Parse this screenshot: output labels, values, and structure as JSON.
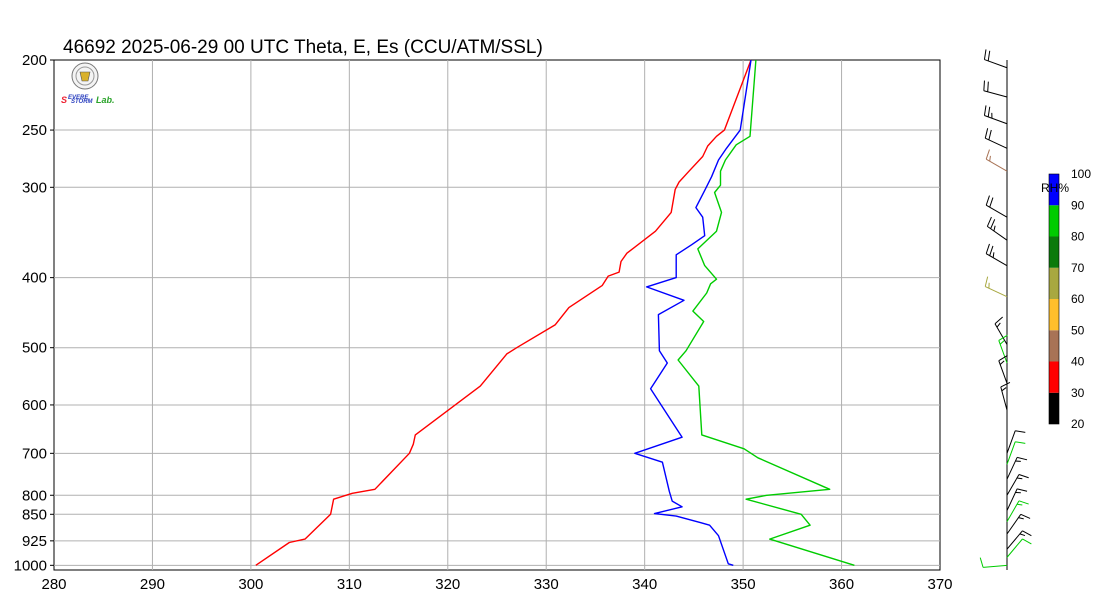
{
  "chart_data": {
    "type": "line",
    "title": "46692  2025-06-29 00 UTC  Theta, E, Es (CCU/ATM/SSL)",
    "x_ticks": [
      "280",
      "290",
      "300",
      "310",
      "320",
      "330",
      "340",
      "350",
      "360",
      "370"
    ],
    "y_ticks": [
      {
        "p": 200,
        "label": "200"
      },
      {
        "p": 250,
        "label": "250"
      },
      {
        "p": 300,
        "label": "300"
      },
      {
        "p": 400,
        "label": "400"
      },
      {
        "p": 500,
        "label": "500"
      },
      {
        "p": 600,
        "label": "600"
      },
      {
        "p": 700,
        "label": "700"
      },
      {
        "p": 800,
        "label": "800"
      },
      {
        "p": 850,
        "label": "850"
      },
      {
        "p": 925,
        "label": "925"
      },
      {
        "p": 1000,
        "label": "1000"
      }
    ],
    "xlim": [
      280,
      370
    ],
    "ylim": [
      1000,
      200
    ],
    "grid": true,
    "series": [
      {
        "color": "#ff0000",
        "points": [
          [
            300.5,
            1000
          ],
          [
            303.9,
            930
          ],
          [
            305.5,
            920
          ],
          [
            308.1,
            850
          ],
          [
            308.4,
            810
          ],
          [
            310.3,
            795
          ],
          [
            312.6,
            785
          ],
          [
            316.1,
            700
          ],
          [
            316.5,
            680
          ],
          [
            316.7,
            660
          ],
          [
            323.3,
            565
          ],
          [
            326.0,
            510
          ],
          [
            327.0,
            500
          ],
          [
            330.9,
            465
          ],
          [
            332.3,
            440
          ],
          [
            335.7,
            410
          ],
          [
            336.3,
            398
          ],
          [
            337.4,
            393
          ],
          [
            337.6,
            380
          ],
          [
            338.2,
            370
          ],
          [
            341.1,
            345
          ],
          [
            342.7,
            325
          ],
          [
            343.1,
            302
          ],
          [
            343.5,
            295
          ],
          [
            344.5,
            285
          ],
          [
            345.9,
            272
          ],
          [
            346.4,
            263
          ],
          [
            347.3,
            255
          ],
          [
            348.1,
            250
          ],
          [
            350.8,
            200
          ]
        ]
      },
      {
        "color": "#0000ff",
        "points": [
          [
            349.0,
            1000
          ],
          [
            348.5,
            995
          ],
          [
            347.5,
            910
          ],
          [
            346.6,
            880
          ],
          [
            345.7,
            873
          ],
          [
            343.2,
            855
          ],
          [
            341.0,
            848
          ],
          [
            343.8,
            830
          ],
          [
            342.8,
            815
          ],
          [
            342.5,
            790
          ],
          [
            341.8,
            720
          ],
          [
            339.0,
            700
          ],
          [
            343.8,
            665
          ],
          [
            340.6,
            570
          ],
          [
            342.3,
            525
          ],
          [
            341.5,
            505
          ],
          [
            341.4,
            450
          ],
          [
            344.0,
            430
          ],
          [
            340.2,
            412
          ],
          [
            343.2,
            400
          ],
          [
            343.2,
            372
          ],
          [
            344.8,
            360
          ],
          [
            346.1,
            350
          ],
          [
            345.9,
            330
          ],
          [
            345.2,
            320
          ],
          [
            346.1,
            303
          ],
          [
            346.8,
            290
          ],
          [
            347.5,
            275
          ],
          [
            348.3,
            265
          ],
          [
            349.7,
            250
          ],
          [
            350.8,
            200
          ]
        ]
      },
      {
        "color": "#00cc00",
        "points": [
          [
            361.3,
            1000
          ],
          [
            352.7,
            920
          ],
          [
            356.8,
            880
          ],
          [
            355.9,
            850
          ],
          [
            350.3,
            810
          ],
          [
            352.4,
            800
          ],
          [
            358.8,
            785
          ],
          [
            351.5,
            710
          ],
          [
            350.1,
            690
          ],
          [
            345.8,
            660
          ],
          [
            345.5,
            565
          ],
          [
            343.4,
            520
          ],
          [
            344.2,
            505
          ],
          [
            346.0,
            460
          ],
          [
            344.9,
            445
          ],
          [
            346.3,
            420
          ],
          [
            346.7,
            408
          ],
          [
            347.3,
            402
          ],
          [
            346.1,
            385
          ],
          [
            345.4,
            365
          ],
          [
            347.3,
            345
          ],
          [
            347.8,
            325
          ],
          [
            347.1,
            305
          ],
          [
            347.7,
            298
          ],
          [
            347.7,
            285
          ],
          [
            348.2,
            275
          ],
          [
            349.3,
            262
          ],
          [
            350.7,
            255
          ],
          [
            351.3,
            200
          ]
        ]
      }
    ],
    "colorbar": {
      "title": "RH%",
      "ticks": [
        "20",
        "30",
        "40",
        "50",
        "60",
        "70",
        "80",
        "90",
        "100"
      ],
      "colors": [
        "#000000",
        "#ff0000",
        "#a87356",
        "#ffbf2b",
        "#a8a840",
        "#0b7a0b",
        "#00cc00",
        "#0000ff"
      ]
    }
  },
  "wind_barbs": [
    {
      "p": 205,
      "dir": 290,
      "spd": 20,
      "color": "#000000"
    },
    {
      "p": 225,
      "dir": 285,
      "spd": 20,
      "color": "#000000"
    },
    {
      "p": 245,
      "dir": 290,
      "spd": 25,
      "color": "#000000"
    },
    {
      "p": 265,
      "dir": 295,
      "spd": 20,
      "color": "#000000"
    },
    {
      "p": 285,
      "dir": 300,
      "spd": 15,
      "color": "#a87356"
    },
    {
      "p": 330,
      "dir": 300,
      "spd": 20,
      "color": "#000000"
    },
    {
      "p": 355,
      "dir": 305,
      "spd": 25,
      "color": "#000000"
    },
    {
      "p": 385,
      "dir": 300,
      "spd": 25,
      "color": "#000000"
    },
    {
      "p": 425,
      "dir": 295,
      "spd": 15,
      "color": "#a8a840"
    },
    {
      "p": 495,
      "dir": 330,
      "spd": 15,
      "color": "#000000"
    },
    {
      "p": 525,
      "dir": 340,
      "spd": 15,
      "color": "#00cc00"
    },
    {
      "p": 560,
      "dir": 340,
      "spd": 15,
      "color": "#000000"
    },
    {
      "p": 610,
      "dir": 345,
      "spd": 15,
      "color": "#000000"
    },
    {
      "p": 700,
      "dir": 20,
      "spd": 10,
      "color": "#000000"
    },
    {
      "p": 725,
      "dir": 20,
      "spd": 10,
      "color": "#00cc00"
    },
    {
      "p": 760,
      "dir": 25,
      "spd": 15,
      "color": "#000000"
    },
    {
      "p": 800,
      "dir": 30,
      "spd": 15,
      "color": "#000000"
    },
    {
      "p": 840,
      "dir": 25,
      "spd": 15,
      "color": "#000000"
    },
    {
      "p": 870,
      "dir": 30,
      "spd": 15,
      "color": "#00cc00"
    },
    {
      "p": 905,
      "dir": 35,
      "spd": 15,
      "color": "#000000"
    },
    {
      "p": 950,
      "dir": 40,
      "spd": 15,
      "color": "#000000"
    },
    {
      "p": 975,
      "dir": 40,
      "spd": 10,
      "color": "#00cc00"
    },
    {
      "p": 1000,
      "dir": 265,
      "spd": 10,
      "color": "#00cc00"
    }
  ],
  "logo": {
    "lab_text": "Severe Storm Lab."
  }
}
